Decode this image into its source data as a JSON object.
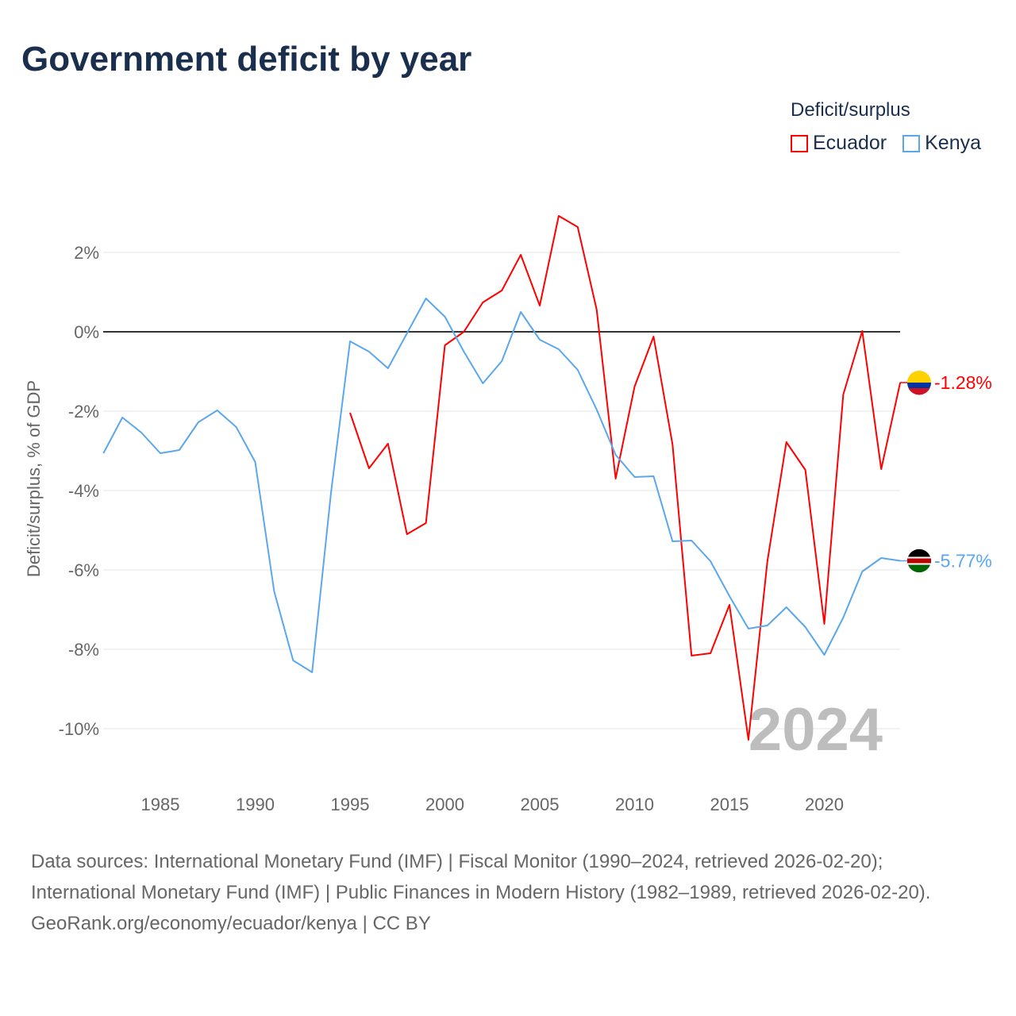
{
  "title": "Government deficit by year",
  "legend": {
    "title": "Deficit/surplus",
    "items": [
      {
        "label": "Ecuador",
        "color": "#ff0000"
      },
      {
        "label": "Kenya",
        "color": "#5aa7ee"
      }
    ]
  },
  "watermark_year": "2024",
  "footer": {
    "sources": "Data sources: International Monetary Fund (IMF) | Fiscal Monitor (1990–2024, retrieved 2026-02-20); International Monetary Fund (IMF) | Public Finances in Modern History (1982–1989, retrieved 2026-02-20).",
    "credit": "GeoRank.org/economy/ecuador/kenya | CC BY"
  },
  "chart_data": {
    "type": "line",
    "title": "Government deficit by year",
    "xlabel": "",
    "ylabel": "Deficit/surplus, % of GDP",
    "xlim": [
      1982,
      2024
    ],
    "ylim": [
      -11,
      3.5
    ],
    "x_ticks": [
      1985,
      1990,
      1995,
      2000,
      2005,
      2010,
      2015,
      2020
    ],
    "y_ticks": [
      2,
      0,
      -2,
      -4,
      -6,
      -8,
      -10
    ],
    "y_tick_labels": [
      "2%",
      "0%",
      "-2%",
      "-4%",
      "-6%",
      "-8%",
      "-10%"
    ],
    "legend_position": "top-right",
    "series": [
      {
        "name": "Ecuador",
        "color": "#ff0000",
        "end_label": "-1.28%",
        "start_year": 1995,
        "values": [
          -2.04,
          -3.44,
          -2.82,
          -5.1,
          -4.82,
          -0.34,
          0.0,
          0.74,
          1.04,
          1.94,
          0.66,
          2.92,
          2.64,
          0.56,
          -3.7,
          -1.38,
          -0.12,
          -2.84,
          -8.16,
          -8.1,
          -6.88,
          -10.28,
          -5.78,
          -2.78,
          -3.48,
          -7.36,
          -1.58,
          0.02,
          -3.46,
          -1.28
        ]
      },
      {
        "name": "Kenya",
        "color": "#5aa7ee",
        "end_label": "-5.77%",
        "start_year": 1982,
        "values": [
          -3.06,
          -2.16,
          -2.54,
          -3.06,
          -2.98,
          -2.28,
          -1.98,
          -2.4,
          -3.28,
          -6.54,
          -8.28,
          -8.58,
          -4.04,
          -0.24,
          -0.5,
          -0.92,
          -0.04,
          0.84,
          0.38,
          -0.5,
          -1.3,
          -0.74,
          0.5,
          -0.2,
          -0.44,
          -0.96,
          -1.96,
          -3.1,
          -3.66,
          -3.64,
          -5.28,
          -5.26,
          -5.78,
          -6.66,
          -7.48,
          -7.4,
          -6.94,
          -7.44,
          -8.14,
          -7.2,
          -6.04,
          -5.7,
          -5.77
        ]
      }
    ]
  }
}
